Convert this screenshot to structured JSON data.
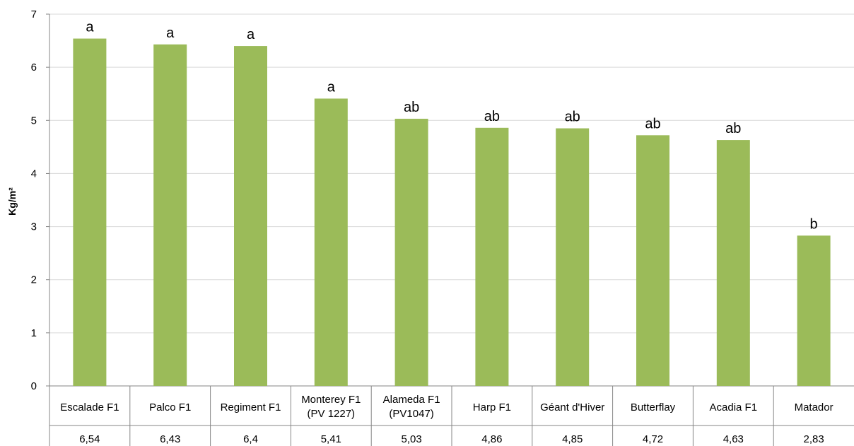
{
  "chart_data": {
    "type": "bar",
    "ylabel": "Kg/m²",
    "ylim": [
      0,
      7
    ],
    "yticks": [
      0,
      1,
      2,
      3,
      4,
      5,
      6,
      7
    ],
    "grid": true,
    "categories": [
      [
        "Escalade F1"
      ],
      [
        "Palco F1"
      ],
      [
        "Regiment F1"
      ],
      [
        "Monterey F1",
        "(PV 1227)"
      ],
      [
        "Alameda F1",
        "(PV1047)"
      ],
      [
        "Harp F1"
      ],
      [
        "Géant d'Hiver"
      ],
      [
        "Butterflay"
      ],
      [
        "Acadia F1"
      ],
      [
        "Matador"
      ]
    ],
    "values": [
      6.54,
      6.43,
      6.4,
      5.41,
      5.03,
      4.86,
      4.85,
      4.72,
      4.63,
      2.83
    ],
    "value_labels": [
      "6,54",
      "6,43",
      "6,4",
      "5,41",
      "5,03",
      "4,86",
      "4,85",
      "4,72",
      "4,63",
      "2,83"
    ],
    "significance": [
      "a",
      "a",
      "a",
      "a",
      "ab",
      "ab",
      "ab",
      "ab",
      "ab",
      "b"
    ],
    "bar_color": "#9bbb59",
    "grid_color": "#d9d9d9",
    "axis_color": "#868686"
  }
}
